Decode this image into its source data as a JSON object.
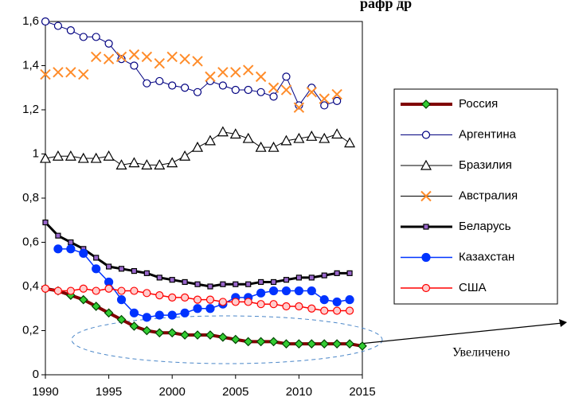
{
  "chart_data": {
    "type": "line",
    "title": "рафр  др",
    "annotation": "Увеличено",
    "x": [
      1990,
      1991,
      1992,
      1993,
      1994,
      1995,
      1996,
      1997,
      1998,
      1999,
      2000,
      2001,
      2002,
      2003,
      2004,
      2005,
      2006,
      2007,
      2008,
      2009,
      2010,
      2011,
      2012,
      2013,
      2014,
      2015
    ],
    "xlim": [
      1990,
      2015
    ],
    "xticks": [
      1990,
      1995,
      2000,
      2005,
      2010,
      2015
    ],
    "ylim": [
      0,
      1.6
    ],
    "yticks": [
      0,
      {
        "value": 0.2,
        "label": "0,2"
      },
      {
        "value": 0.4,
        "label": "0,4"
      },
      {
        "value": 0.6,
        "label": "0,6"
      },
      {
        "value": 0.8,
        "label": "0,8"
      },
      1,
      {
        "value": 1.2,
        "label": "1,2"
      },
      {
        "value": 1.4,
        "label": "1,4"
      },
      {
        "value": 1.6,
        "label": "1,6"
      }
    ],
    "grid": false,
    "legend": "right",
    "series": [
      {
        "name": "Россия",
        "color": "#800000",
        "width": 4,
        "marker": "diamond",
        "marker_color": "#33cc33",
        "values": [
          0.39,
          0.38,
          0.36,
          0.34,
          0.31,
          0.28,
          0.25,
          0.22,
          0.2,
          0.19,
          0.19,
          0.18,
          0.18,
          0.18,
          0.17,
          0.16,
          0.15,
          0.15,
          0.15,
          0.14,
          0.14,
          0.14,
          0.14,
          0.14,
          0.14,
          0.13
        ]
      },
      {
        "name": "Аргентина",
        "color": "#000080",
        "width": 1,
        "marker": "circle",
        "marker_color": "#ffffff",
        "values": [
          1.6,
          1.58,
          1.56,
          1.53,
          1.53,
          1.5,
          1.43,
          1.4,
          1.32,
          1.33,
          1.31,
          1.3,
          1.28,
          1.33,
          1.31,
          1.29,
          1.29,
          1.28,
          1.26,
          1.35,
          1.22,
          1.3,
          1.22,
          1.24,
          null,
          null
        ]
      },
      {
        "name": "Бразилия",
        "color": "#000000",
        "width": 1,
        "marker": "triangle",
        "marker_color": "#ffffff",
        "values": [
          0.98,
          0.99,
          0.99,
          0.98,
          0.98,
          0.99,
          0.95,
          0.96,
          0.95,
          0.95,
          0.96,
          0.99,
          1.03,
          1.06,
          1.1,
          1.09,
          1.07,
          1.03,
          1.03,
          1.06,
          1.07,
          1.08,
          1.07,
          1.09,
          1.05,
          null
        ]
      },
      {
        "name": "Австралия",
        "color": "#ff8c2a",
        "width": 1,
        "marker": "x",
        "marker_color": "#ff8c2a",
        "line": false,
        "values": [
          1.36,
          1.37,
          1.37,
          1.36,
          1.44,
          1.43,
          1.44,
          1.45,
          1.44,
          1.41,
          1.44,
          1.43,
          1.42,
          1.35,
          1.37,
          1.37,
          1.38,
          1.35,
          1.3,
          1.29,
          1.21,
          1.28,
          1.25,
          1.27,
          null,
          null
        ]
      },
      {
        "name": "Беларусь",
        "color": "#000000",
        "width": 3,
        "marker": "square",
        "marker_color": "#9966cc",
        "values": [
          0.69,
          0.63,
          0.6,
          0.57,
          0.53,
          0.49,
          0.48,
          0.47,
          0.46,
          0.44,
          0.43,
          0.42,
          0.41,
          0.4,
          0.41,
          0.41,
          0.41,
          0.42,
          0.42,
          0.43,
          0.44,
          0.44,
          0.45,
          0.46,
          0.46,
          null
        ]
      },
      {
        "name": "Казахстан",
        "color": "#0033ff",
        "width": 1.5,
        "marker": "dot",
        "marker_color": "#0033ff",
        "values": [
          null,
          0.57,
          0.57,
          0.55,
          0.48,
          0.42,
          0.34,
          0.28,
          0.26,
          0.27,
          0.27,
          0.28,
          0.3,
          0.3,
          0.32,
          0.35,
          0.35,
          0.37,
          0.38,
          0.38,
          0.38,
          0.38,
          0.34,
          0.33,
          0.34,
          null
        ]
      },
      {
        "name": "США",
        "color": "#ff0000",
        "width": 1.5,
        "marker": "circle",
        "marker_color": "#ffcccc",
        "values": [
          0.39,
          0.38,
          0.38,
          0.39,
          0.38,
          0.39,
          0.38,
          0.38,
          0.37,
          0.36,
          0.35,
          0.35,
          0.34,
          0.34,
          0.33,
          0.33,
          0.33,
          0.32,
          0.32,
          0.31,
          0.31,
          0.3,
          0.29,
          0.29,
          0.29,
          null
        ]
      }
    ]
  }
}
